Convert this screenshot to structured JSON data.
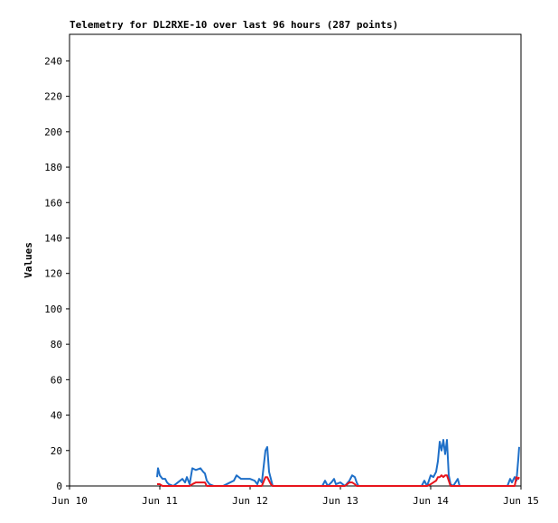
{
  "chart_data": {
    "type": "line",
    "title": "Telemetry for DL2RXE-10 over last 96 hours (287 points)",
    "ylabel": "Values",
    "xlim": [
      0,
      5
    ],
    "xticks": [
      {
        "value": 0,
        "label": "Jun 10"
      },
      {
        "value": 1,
        "label": "Jun 11"
      },
      {
        "value": 2,
        "label": "Jun 12"
      },
      {
        "value": 3,
        "label": "Jun 13"
      },
      {
        "value": 4,
        "label": "Jun 14"
      },
      {
        "value": 5,
        "label": "Jun 15"
      }
    ],
    "ylim": [
      0,
      255
    ],
    "yticks": [
      0,
      20,
      40,
      60,
      80,
      100,
      120,
      140,
      160,
      180,
      200,
      220,
      240
    ],
    "x": [
      0.97,
      0.98,
      1.0,
      1.03,
      1.06,
      1.08,
      1.1,
      1.15,
      1.2,
      1.25,
      1.28,
      1.3,
      1.33,
      1.36,
      1.4,
      1.45,
      1.48,
      1.5,
      1.52,
      1.55,
      1.6,
      1.7,
      1.78,
      1.82,
      1.85,
      1.9,
      2.0,
      2.05,
      2.08,
      2.1,
      2.13,
      2.17,
      2.19,
      2.21,
      2.23,
      2.25,
      2.5,
      2.8,
      2.83,
      2.86,
      2.9,
      2.93,
      2.95,
      3.0,
      3.05,
      3.1,
      3.13,
      3.16,
      3.18,
      3.2,
      3.5,
      3.9,
      3.93,
      3.96,
      4.0,
      4.03,
      4.06,
      4.08,
      4.1,
      4.12,
      4.14,
      4.16,
      4.18,
      4.2,
      4.22,
      4.25,
      4.3,
      4.32,
      4.35,
      4.6,
      4.85,
      4.88,
      4.9,
      4.93,
      4.95,
      4.97,
      4.98
    ],
    "series": [
      {
        "color": "#1e6fc8",
        "values": [
          5,
          10,
          6,
          4,
          4,
          2,
          1,
          0,
          2,
          4,
          2,
          5,
          1,
          10,
          9,
          10,
          8,
          7,
          3,
          1,
          0,
          0,
          2,
          3,
          6,
          4,
          4,
          3,
          1,
          4,
          2,
          20,
          22,
          8,
          4,
          0,
          0,
          0,
          3,
          0,
          2,
          4,
          1,
          2,
          0,
          3,
          6,
          5,
          2,
          0,
          0,
          0,
          3,
          0,
          6,
          5,
          8,
          14,
          25,
          20,
          26,
          18,
          26,
          6,
          1,
          0,
          4,
          0,
          0,
          0,
          0,
          4,
          2,
          5,
          3,
          15,
          22
        ]
      },
      {
        "color": "#e8141c",
        "values": [
          1,
          1,
          1,
          0,
          0,
          0,
          0,
          0,
          0,
          0,
          0,
          0,
          0,
          1,
          2,
          2,
          2,
          2,
          0,
          0,
          0,
          0,
          0,
          0,
          0,
          0,
          0,
          0,
          0,
          0,
          0,
          5,
          5,
          3,
          1,
          0,
          0,
          0,
          0,
          0,
          0,
          0,
          0,
          0,
          0,
          2,
          2,
          1,
          0,
          0,
          0,
          0,
          0,
          0,
          1,
          2,
          3,
          5,
          5,
          6,
          5,
          6,
          6,
          3,
          0,
          0,
          0,
          0,
          0,
          0,
          0,
          0,
          0,
          0,
          5,
          4,
          5
        ]
      }
    ]
  }
}
